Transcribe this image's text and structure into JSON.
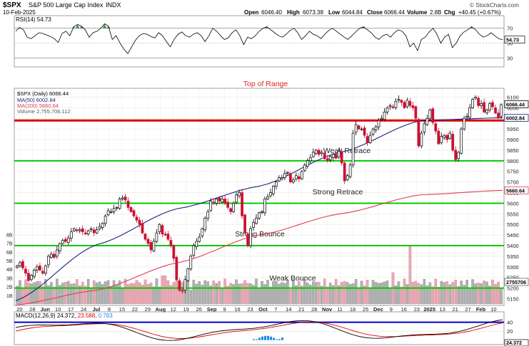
{
  "header": {
    "symbol": "$SPX",
    "name": "S&P 500 Large Cap Index",
    "exchange": "INDX",
    "date": "10-Feb-2025",
    "copyright": "© StockCharts.com",
    "open_label": "Open",
    "open": "6046.40",
    "high_label": "High",
    "high": "6073.38",
    "low_label": "Low",
    "low": "6044.84",
    "close_label": "Close",
    "close": "6066.44",
    "volume_label": "Volume",
    "volume": "2.8B",
    "chg_label": "Chg",
    "chg": "+40.45 (+0.67%)"
  },
  "colors": {
    "up": "#000000",
    "down": "#cc1133",
    "ma50": "#1a237e",
    "ma200": "#e53950",
    "support": "#00cc00",
    "resistance": "#dd0000",
    "volume_up": "#b0b0b0",
    "volume_down": "#e8a7b2",
    "rsi_fill": "#2e7d32",
    "macd": "#000000",
    "signal": "#dd0000",
    "macd_hist": "#1e88e5",
    "macd_level": "#0000cc",
    "annotation_red": "#dd2222",
    "annotation_dark": "#222222"
  },
  "rsi": {
    "label": "RSI(14)",
    "value": "54.73",
    "levels": [
      "70",
      "50",
      "30"
    ],
    "values": [
      66,
      71,
      68,
      58,
      56,
      60,
      64,
      63,
      61,
      59,
      56,
      51,
      63,
      66,
      60,
      72,
      75,
      73,
      68,
      58,
      64,
      66,
      70,
      76,
      73,
      55,
      60,
      50,
      42,
      36,
      45,
      54,
      60,
      63,
      62,
      59,
      57,
      64,
      60,
      52,
      45,
      55,
      62,
      65,
      60,
      58,
      62,
      64,
      60,
      52,
      60,
      70,
      66,
      60,
      55,
      57,
      64,
      68,
      60,
      48,
      58,
      56,
      60,
      66,
      70,
      72,
      68,
      64,
      60,
      58,
      62,
      67,
      70,
      64,
      55,
      60,
      66,
      62,
      60,
      56,
      62,
      67,
      70,
      66,
      62,
      58,
      55,
      60,
      65,
      70,
      72,
      68,
      64,
      58,
      55,
      60,
      62,
      58,
      64,
      68,
      66,
      60,
      45,
      50,
      40,
      55,
      58,
      65,
      70,
      62,
      50,
      58,
      62,
      44,
      50,
      60,
      65,
      68,
      72,
      68,
      62,
      58,
      60,
      64,
      60,
      56,
      54.73
    ]
  },
  "price_legend": {
    "price": "$SPX (Daily) 6066.44",
    "ma50": "MA(50) 6002.84",
    "ma200": "MA(200) 5660.64",
    "volume": "Volume 2,755,706,112"
  },
  "chart_data": {
    "type": "candlestick",
    "x_labels": [
      "20",
      "28",
      "Jun",
      "10",
      "17",
      "24",
      "Jul",
      "8",
      "15",
      "22",
      "29",
      "Aug",
      "12",
      "19",
      "26",
      "Sep",
      "9",
      "16",
      "23",
      "Oct",
      "7",
      "14",
      "21",
      "28",
      "Nov",
      "11",
      "18",
      "25",
      "Dec",
      "9",
      "16",
      "23",
      "2025",
      "13",
      "21",
      "27",
      "Feb",
      "10"
    ],
    "y_ticks": [
      5150,
      5200,
      5250,
      5300,
      5350,
      5400,
      5450,
      5500,
      5550,
      5600,
      5650,
      5700,
      5750,
      5800,
      5850,
      5900,
      5950,
      6000,
      6050,
      6100
    ],
    "ylim": [
      5125,
      6135
    ],
    "volume_ticks": [
      "1B",
      "2B",
      "3B",
      "4B",
      "5B",
      "6B",
      "7B",
      "8B"
    ],
    "close": [
      5305,
      5320,
      5295,
      5270,
      5235,
      5260,
      5285,
      5300,
      5285,
      5270,
      5305,
      5350,
      5360,
      5345,
      5380,
      5410,
      5425,
      5420,
      5435,
      5465,
      5480,
      5470,
      5475,
      5465,
      5455,
      5470,
      5480,
      5460,
      5475,
      5490,
      5505,
      5540,
      5565,
      5560,
      5575,
      5580,
      5620,
      5625,
      5615,
      5580,
      5560,
      5540,
      5520,
      5500,
      5460,
      5430,
      5410,
      5380,
      5420,
      5460,
      5500,
      5455,
      5450,
      5430,
      5400,
      5340,
      5240,
      5190,
      5185,
      5240,
      5290,
      5350,
      5400,
      5420,
      5440,
      5480,
      5530,
      5560,
      5610,
      5600,
      5620,
      5610,
      5620,
      5600,
      5580,
      5560,
      5600,
      5640,
      5650,
      5540,
      5460,
      5400,
      5480,
      5510,
      5530,
      5555,
      5560,
      5620,
      5630,
      5650,
      5680,
      5700,
      5720,
      5720,
      5740,
      5745,
      5700,
      5710,
      5730,
      5715,
      5750,
      5780,
      5800,
      5815,
      5840,
      5850,
      5830,
      5840,
      5810,
      5800,
      5820,
      5830,
      5812,
      5845,
      5790,
      5705,
      5730,
      5780,
      5930,
      5970,
      5950,
      5950,
      5920,
      5885,
      5920,
      5950,
      5960,
      5990,
      6000,
      6030,
      6050,
      6060,
      6050,
      6080,
      6090,
      6075,
      6050,
      6085,
      6060,
      6050,
      6000,
      5870,
      5930,
      5975,
      6000,
      6040,
      5980,
      5940,
      5880,
      5915,
      5920,
      5900,
      5930,
      5850,
      5805,
      5840,
      5950,
      6000,
      6010,
      6050,
      6090,
      6100,
      6060,
      6070,
      6030,
      6040,
      6070,
      6055,
      6025,
      6005,
      6065
    ],
    "ma50_y": [
      5140,
      5405,
      5575,
      5680,
      5840,
      5990,
      6002.84
    ],
    "ma200_y": [
      5120,
      5190,
      5320,
      5450,
      5550,
      5640,
      5660.64
    ],
    "series": [
      {
        "name": "$SPX (Daily)",
        "value": 6066.44
      },
      {
        "name": "MA(50)",
        "value": 6002.84
      },
      {
        "name": "MA(200)",
        "value": 5660.64
      }
    ],
    "levels": [
      {
        "label": "Top of Range",
        "price": 5990,
        "color": "red"
      },
      {
        "label": "Weak Retrace",
        "price": 5800,
        "color": "green"
      },
      {
        "label": "Strong Retrace",
        "price": 5600,
        "color": "green"
      },
      {
        "label": "Strong Bounce",
        "price": 5400,
        "color": "green"
      },
      {
        "label": "Weak Bounce",
        "price": 5200,
        "color": "green"
      }
    ],
    "last_tags": {
      "close": "6066.44",
      "ma50": "6002.84",
      "ma200": "5660.64",
      "volume": "2755706"
    },
    "grid": true
  },
  "macd": {
    "label": "MACD(12,26,9)",
    "macd_value": "24.372",
    "signal_value": "23.588",
    "hist_value": "0.783",
    "ticks": [
      "40",
      "20"
    ],
    "last_tag": "24.372"
  }
}
